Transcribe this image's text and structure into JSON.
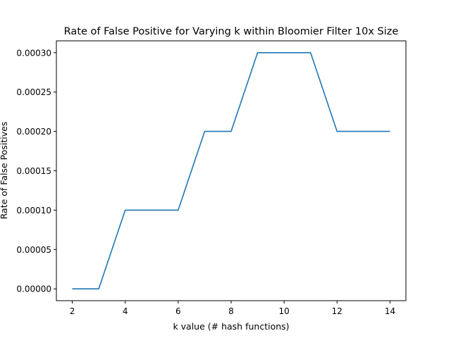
{
  "chart_data": {
    "type": "line",
    "title": "Rate of False Positive for Varying k within Bloomier Filter 10x Size",
    "xlabel": "k value (# hash functions)",
    "ylabel": "Rate of False Positives",
    "xlim": [
      1.4,
      14.6
    ],
    "ylim": [
      -1.5e-05,
      0.000315
    ],
    "x_ticks": [
      2,
      4,
      6,
      8,
      10,
      12,
      14
    ],
    "x_tick_labels": [
      "2",
      "4",
      "6",
      "8",
      "10",
      "12",
      "14"
    ],
    "y_ticks": [
      0,
      5e-05,
      0.0001,
      0.00015,
      0.0002,
      0.00025,
      0.0003
    ],
    "y_tick_labels": [
      "0.00000",
      "0.00005",
      "0.00010",
      "0.00015",
      "0.00020",
      "0.00025",
      "0.00030"
    ],
    "grid": false,
    "legend": "none",
    "colors": {
      "series": "#1f77b4"
    },
    "x": [
      2,
      3,
      4,
      5,
      6,
      7,
      8,
      9,
      10,
      11,
      12,
      13,
      14
    ],
    "series": [
      {
        "values": [
          0,
          0,
          0.0001,
          0.0001,
          0.0001,
          0.0002,
          0.0002,
          0.0003,
          0.0003,
          0.0003,
          0.0002,
          0.0002,
          0.0002
        ]
      }
    ]
  }
}
